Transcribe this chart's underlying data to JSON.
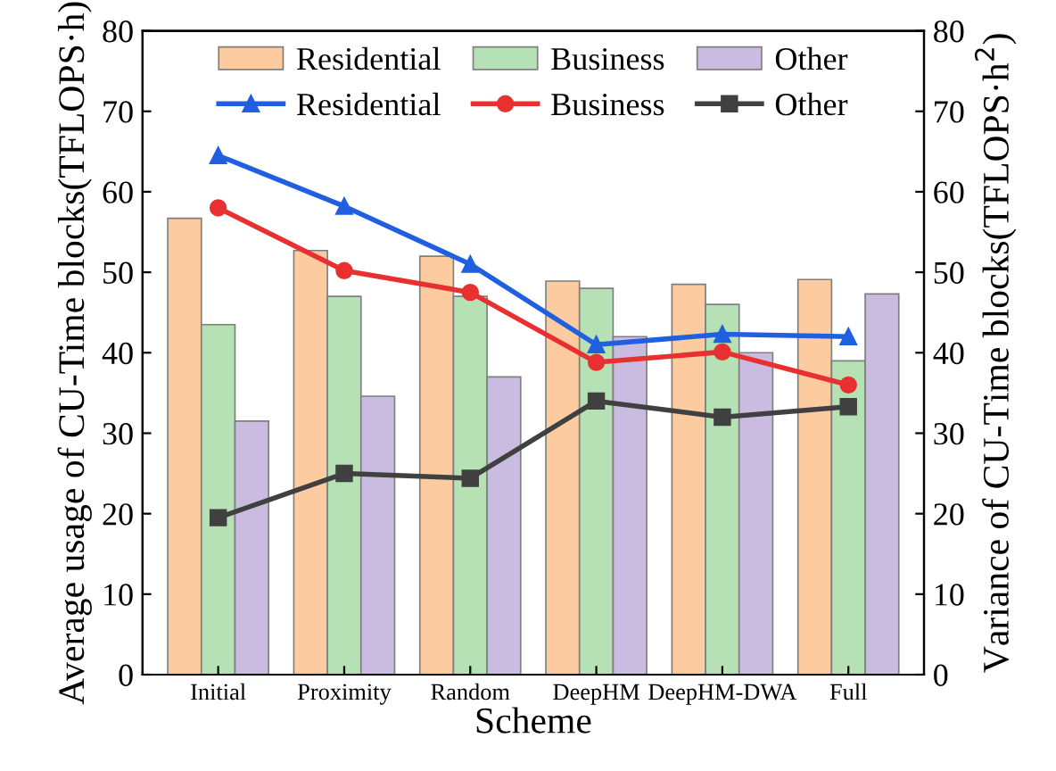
{
  "chart_data": {
    "type": "bar",
    "xlabel": "Scheme",
    "ylabel": "Average usage of CU-Time blocks(TFLOPS·h)",
    "y2label": "Variance of CU-Time blocks(TFLOPS·h$^{2}$)",
    "categories": [
      "Initial",
      "Proximity",
      "Random",
      "DeepHM",
      "DeepHM-DWA",
      "Full"
    ],
    "series": [
      {
        "name": "Residential",
        "color": "#fdcba0",
        "values": [
          56.7,
          52.7,
          52,
          48.9,
          48.5,
          49.1
        ]
      },
      {
        "name": "Business",
        "color": "#b5e1b5",
        "values": [
          43.5,
          47,
          47,
          48,
          46,
          39
        ]
      },
      {
        "name": "Other",
        "color": "#c9bce0",
        "values": [
          31.5,
          34.6,
          37,
          42,
          40,
          47.3
        ]
      },
      {
        "name": "Residential",
        "type": "line",
        "color": "#1f5fe0",
        "marker": "triangle",
        "values": [
          64.5,
          58.2,
          51,
          41,
          42.3,
          42
        ]
      },
      {
        "name": "Business",
        "type": "line",
        "color": "#e83030",
        "marker": "circle",
        "values": [
          58,
          50.2,
          47.5,
          38.8,
          40.1,
          36
        ]
      },
      {
        "name": "Other",
        "type": "line",
        "color": "#404040",
        "marker": "square",
        "values": [
          19.5,
          25,
          24.4,
          34,
          32,
          33.3
        ]
      }
    ],
    "ylim": [
      0,
      80
    ],
    "yticks": [
      0,
      10,
      20,
      30,
      40,
      50,
      60,
      70,
      80
    ],
    "y2lim": [
      0,
      80
    ],
    "y2ticks": [
      0,
      10,
      20,
      30,
      40,
      50,
      60,
      70,
      80
    ],
    "legend": "top",
    "grid": false
  }
}
